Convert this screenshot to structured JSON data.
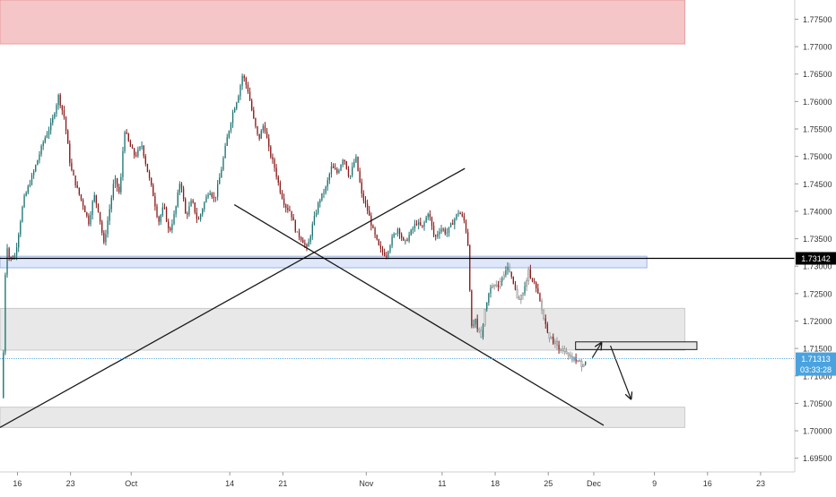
{
  "chart_data": {
    "type": "candlestick",
    "title": "",
    "xlabel": "",
    "ylabel": "",
    "ylim": [
      1.6925,
      1.7785
    ],
    "y_ticks": [
      "1.69500",
      "1.70000",
      "1.70500",
      "1.71000",
      "1.71500",
      "1.72000",
      "1.72500",
      "1.73000",
      "1.73500",
      "1.74000",
      "1.74500",
      "1.75000",
      "1.75500",
      "1.76000",
      "1.76500",
      "1.77000",
      "1.77500"
    ],
    "x_ticks": [
      {
        "label": "16",
        "day": -15
      },
      {
        "label": "23",
        "day": -8
      },
      {
        "label": "Oct",
        "day": 0
      },
      {
        "label": "14",
        "day": 13
      },
      {
        "label": "21",
        "day": 20
      },
      {
        "label": "Nov",
        "day": 31
      },
      {
        "label": "11",
        "day": 41
      },
      {
        "label": "18",
        "day": 48
      },
      {
        "label": "25",
        "day": 55
      },
      {
        "label": "Dec",
        "day": 61
      },
      {
        "label": "9",
        "day": 69
      },
      {
        "label": "16",
        "day": 76
      },
      {
        "label": "23",
        "day": 83
      }
    ],
    "xlim_days": [
      -17.3,
      87.5
    ],
    "price_path": [
      [
        -17.1,
        1.706
      ],
      [
        -17.0,
        1.7025
      ],
      [
        -16.7,
        1.726
      ],
      [
        -16.4,
        1.734
      ],
      [
        -16.0,
        1.731
      ],
      [
        -15.3,
        1.732
      ],
      [
        -14.2,
        1.742
      ],
      [
        -12.9,
        1.747
      ],
      [
        -11.5,
        1.753
      ],
      [
        -10.5,
        1.756
      ],
      [
        -9.6,
        1.761
      ],
      [
        -8.8,
        1.757
      ],
      [
        -8.0,
        1.748
      ],
      [
        -7.1,
        1.744
      ],
      [
        -6.3,
        1.741
      ],
      [
        -5.6,
        1.738
      ],
      [
        -4.9,
        1.743
      ],
      [
        -4.3,
        1.74
      ],
      [
        -3.6,
        1.734
      ],
      [
        -2.9,
        1.74
      ],
      [
        -2.2,
        1.746
      ],
      [
        -1.5,
        1.743
      ],
      [
        -0.9,
        1.755
      ],
      [
        -0.2,
        1.752
      ],
      [
        0.5,
        1.75
      ],
      [
        1.4,
        1.752
      ],
      [
        2.2,
        1.747
      ],
      [
        2.9,
        1.743
      ],
      [
        3.6,
        1.738
      ],
      [
        4.3,
        1.741
      ],
      [
        5.0,
        1.736
      ],
      [
        5.8,
        1.74
      ],
      [
        6.5,
        1.746
      ],
      [
        7.2,
        1.739
      ],
      [
        8.0,
        1.742
      ],
      [
        8.8,
        1.738
      ],
      [
        9.5,
        1.741
      ],
      [
        10.3,
        1.744
      ],
      [
        11.0,
        1.742
      ],
      [
        11.8,
        1.747
      ],
      [
        12.6,
        1.753
      ],
      [
        13.4,
        1.758
      ],
      [
        14.1,
        1.761
      ],
      [
        14.7,
        1.765
      ],
      [
        15.4,
        1.762
      ],
      [
        16.1,
        1.757
      ],
      [
        16.8,
        1.753
      ],
      [
        17.5,
        1.756
      ],
      [
        18.2,
        1.751
      ],
      [
        18.9,
        1.748
      ],
      [
        19.6,
        1.744
      ],
      [
        20.3,
        1.741
      ],
      [
        21.0,
        1.74
      ],
      [
        21.8,
        1.736
      ],
      [
        22.5,
        1.735
      ],
      [
        23.2,
        1.733
      ],
      [
        24.0,
        1.738
      ],
      [
        24.8,
        1.742
      ],
      [
        25.6,
        1.744
      ],
      [
        26.4,
        1.748
      ],
      [
        27.2,
        1.747
      ],
      [
        28.0,
        1.75
      ],
      [
        28.8,
        1.746
      ],
      [
        29.6,
        1.75
      ],
      [
        30.4,
        1.743
      ],
      [
        31.2,
        1.74
      ],
      [
        32.0,
        1.736
      ],
      [
        32.8,
        1.733
      ],
      [
        33.6,
        1.732
      ],
      [
        34.4,
        1.735
      ],
      [
        35.2,
        1.737
      ],
      [
        36.0,
        1.734
      ],
      [
        36.8,
        1.736
      ],
      [
        37.6,
        1.738
      ],
      [
        38.4,
        1.737
      ],
      [
        39.2,
        1.74
      ],
      [
        40.0,
        1.735
      ],
      [
        40.8,
        1.737
      ],
      [
        41.6,
        1.736
      ],
      [
        42.4,
        1.738
      ],
      [
        43.2,
        1.74
      ],
      [
        44.0,
        1.738
      ],
      [
        44.5,
        1.733
      ],
      [
        44.8,
        1.719
      ],
      [
        45.4,
        1.72
      ],
      [
        46.1,
        1.717
      ],
      [
        46.8,
        1.723
      ],
      [
        47.5,
        1.727
      ],
      [
        48.2,
        1.726
      ],
      [
        48.9,
        1.728
      ],
      [
        49.6,
        1.73
      ],
      [
        50.3,
        1.727
      ],
      [
        51.0,
        1.724
      ],
      [
        51.7,
        1.725
      ],
      [
        52.4,
        1.729
      ],
      [
        53.1,
        1.727
      ],
      [
        53.8,
        1.724
      ],
      [
        54.5,
        1.72
      ],
      [
        55.2,
        1.717
      ],
      [
        55.9,
        1.716
      ],
      [
        56.6,
        1.715
      ],
      [
        57.3,
        1.714
      ],
      [
        58.0,
        1.713
      ],
      [
        58.7,
        1.713
      ],
      [
        59.4,
        1.712
      ],
      [
        60.1,
        1.7131
      ]
    ],
    "price_label": "1.73142",
    "last_price_label": "1.71313",
    "countdown_label": "03:33:28",
    "colors": {
      "up_candle": "#1d7373",
      "down_candle": "#8b1b1b",
      "projected_candle": "#9e9e9e",
      "resistance_zone": "#f5c6c8",
      "resistance_zone_border": "#e79ca0",
      "support_line_zone": "#dfe8fb",
      "support_line_zone_border": "#9fb3de",
      "demand_zone": "#e8e8e8",
      "demand_zone_border": "#c9c9c9",
      "price_line": "#000000",
      "last_price_line": "#4aa3df",
      "last_price_badge": "#4aa3df",
      "axis_text": "#333333"
    },
    "zones": [
      {
        "name": "resistance",
        "y_top": 1.7785,
        "y_bottom": 1.7705,
        "day_start": -17.3,
        "day_end": 73.0
      },
      {
        "name": "support-band",
        "y_top": 1.7318,
        "y_bottom": 1.7297,
        "day_start": -17.3,
        "day_end": 68.0
      },
      {
        "name": "mid-demand",
        "y_top": 1.7223,
        "y_bottom": 1.7147,
        "day_start": -17.3,
        "day_end": 73.0
      },
      {
        "name": "lower-demand",
        "y_top": 1.7043,
        "y_bottom": 1.7006,
        "day_start": -17.3,
        "day_end": 73.0
      },
      {
        "name": "target-box",
        "y_top": 1.7162,
        "y_bottom": 1.7148,
        "day_start": 58.6,
        "day_end": 74.6
      }
    ],
    "trendlines": [
      {
        "name": "rising-trendline",
        "from": [
          -17.3,
          1.7006
        ],
        "to": [
          44.0,
          1.7478
        ]
      },
      {
        "name": "falling-trendline",
        "from": [
          13.6,
          1.7412
        ],
        "to": [
          62.3,
          1.701
        ]
      }
    ],
    "arrows": [
      {
        "name": "arrow-up",
        "from": [
          60.8,
          1.7133
        ],
        "to": [
          62.0,
          1.716
        ]
      },
      {
        "name": "arrow-down",
        "from": [
          63.2,
          1.7155
        ],
        "to": [
          65.9,
          1.7058
        ]
      }
    ]
  }
}
